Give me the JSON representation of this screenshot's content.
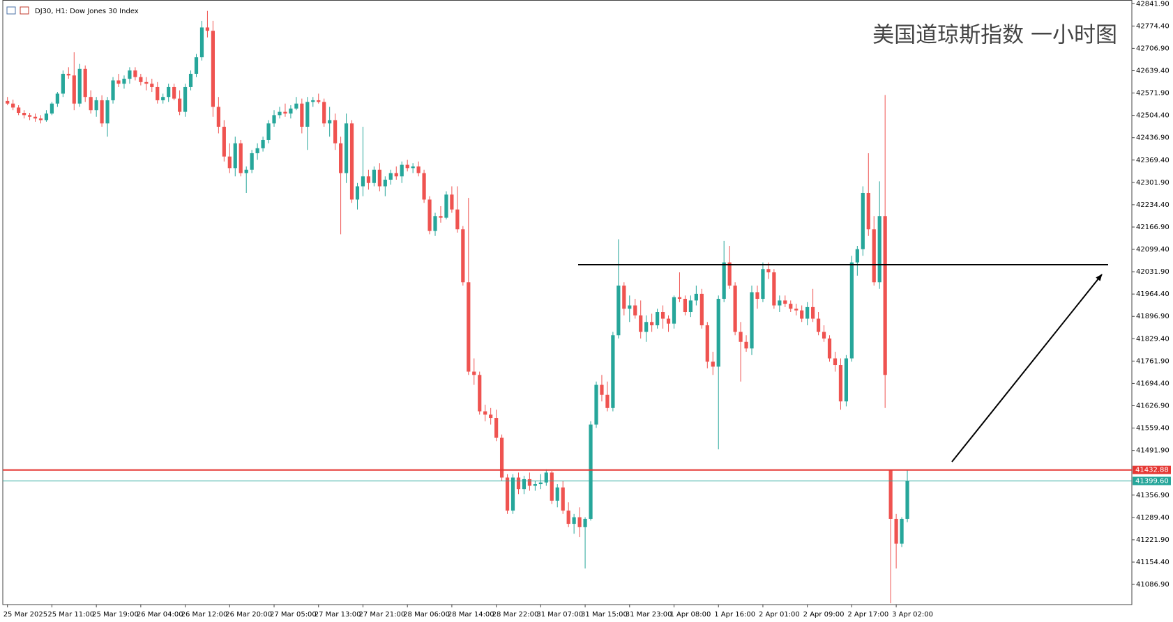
{
  "chart_data": {
    "type": "candlestick",
    "title": "美国道琼斯指数 一小时图",
    "subtitle": "DJ30, H1: Dow Jones 30 Index",
    "up_color": "#26a69a",
    "down_color": "#ef5350",
    "ylim": [
      41026,
      42853
    ],
    "yticks": [
      {
        "value": 42841.9,
        "label": "42841.90"
      },
      {
        "value": 42774.4,
        "label": "42774.40"
      },
      {
        "value": 42706.9,
        "label": "42706.90"
      },
      {
        "value": 42639.4,
        "label": "42639.40"
      },
      {
        "value": 42571.9,
        "label": "42571.90"
      },
      {
        "value": 42504.4,
        "label": "42504.40"
      },
      {
        "value": 42436.9,
        "label": "42436.90"
      },
      {
        "value": 42369.4,
        "label": "42369.40"
      },
      {
        "value": 42301.9,
        "label": "42301.90"
      },
      {
        "value": 42234.4,
        "label": "42234.40"
      },
      {
        "value": 42166.9,
        "label": "42166.90"
      },
      {
        "value": 42099.4,
        "label": "42099.40"
      },
      {
        "value": 42031.9,
        "label": "42031.90"
      },
      {
        "value": 41964.4,
        "label": "41964.40"
      },
      {
        "value": 41896.9,
        "label": "41896.90"
      },
      {
        "value": 41829.4,
        "label": "41829.40"
      },
      {
        "value": 41761.9,
        "label": "41761.90"
      },
      {
        "value": 41694.4,
        "label": "41694.40"
      },
      {
        "value": 41626.9,
        "label": "41626.90"
      },
      {
        "value": 41559.4,
        "label": "41559.40"
      },
      {
        "value": 41491.9,
        "label": "41491.90"
      },
      {
        "value": 41356.9,
        "label": "41356.90"
      },
      {
        "value": 41289.4,
        "label": "41289.40"
      },
      {
        "value": 41221.9,
        "label": "41221.90"
      },
      {
        "value": 41154.4,
        "label": "41154.40"
      },
      {
        "value": 41086.9,
        "label": "41086.90"
      }
    ],
    "price_lines": [
      {
        "value": 41432.88,
        "color": "#e53935"
      },
      {
        "value": 41399.6,
        "label": "41399.60",
        "color": "#26a69a"
      }
    ],
    "categories": [
      "25 Mar 2025",
      null,
      null,
      null,
      null,
      null,
      null,
      null,
      "25 Mar 11:00",
      null,
      null,
      null,
      null,
      null,
      null,
      null,
      "25 Mar 19:00",
      null,
      null,
      null,
      null,
      null,
      null,
      null,
      "26 Mar 04:00",
      null,
      null,
      null,
      null,
      null,
      null,
      null,
      "26 Mar 12:00",
      null,
      null,
      null,
      null,
      null,
      null,
      null,
      "26 Mar 20:00",
      null,
      null,
      null,
      null,
      null,
      null,
      null,
      "27 Mar 05:00",
      null,
      null,
      null,
      null,
      null,
      null,
      null,
      "27 Mar 13:00",
      null,
      null,
      null,
      null,
      null,
      null,
      null,
      "27 Mar 21:00",
      null,
      null,
      null,
      null,
      null,
      null,
      null,
      "28 Mar 06:00",
      null,
      null,
      null,
      null,
      null,
      null,
      null,
      "28 Mar 14:00",
      null,
      null,
      null,
      null,
      null,
      null,
      null,
      "28 Mar 22:00",
      null,
      null,
      null,
      null,
      null,
      null,
      null,
      "31 Mar 07:00",
      null,
      null,
      null,
      null,
      null,
      null,
      null,
      "31 Mar 15:00",
      null,
      null,
      null,
      null,
      null,
      null,
      null,
      "31 Mar 23:00",
      null,
      null,
      null,
      null,
      null,
      null,
      null,
      "1 Apr 08:00",
      null,
      null,
      null,
      null,
      null,
      null,
      null,
      "1 Apr 16:00",
      null,
      null,
      null,
      null,
      null,
      null,
      null,
      "2 Apr 01:00",
      null,
      null,
      null,
      null,
      null,
      null,
      null,
      "2 Apr 09:00",
      null,
      null,
      null,
      null,
      null,
      null,
      null,
      "2 Apr 17:00",
      null,
      null,
      null,
      null,
      null,
      null,
      null,
      "3 Apr 02:00",
      null,
      null
    ],
    "ohlc": [
      [
        42548,
        42560,
        42535,
        42540
      ],
      [
        42540,
        42552,
        42520,
        42528
      ],
      [
        42528,
        42535,
        42505,
        42512
      ],
      [
        42512,
        42520,
        42495,
        42505
      ],
      [
        42505,
        42512,
        42490,
        42500
      ],
      [
        42500,
        42510,
        42485,
        42495
      ],
      [
        42495,
        42505,
        42480,
        42490
      ],
      [
        42490,
        42520,
        42485,
        42510
      ],
      [
        42510,
        42545,
        42505,
        42540
      ],
      [
        42540,
        42575,
        42530,
        42570
      ],
      [
        42570,
        42640,
        42560,
        42630
      ],
      [
        42630,
        42650,
        42615,
        42625
      ],
      [
        42625,
        42695,
        42520,
        42540
      ],
      [
        42540,
        42660,
        42530,
        42645
      ],
      [
        42645,
        42655,
        42545,
        42560
      ],
      [
        42560,
        42580,
        42510,
        42520
      ],
      [
        42520,
        42560,
        42500,
        42550
      ],
      [
        42550,
        42565,
        42470,
        42480
      ],
      [
        42480,
        42560,
        42440,
        42550
      ],
      [
        42550,
        42620,
        42540,
        42610
      ],
      [
        42610,
        42630,
        42590,
        42600
      ],
      [
        42600,
        42625,
        42585,
        42615
      ],
      [
        42615,
        42650,
        42600,
        42640
      ],
      [
        42640,
        42650,
        42610,
        42620
      ],
      [
        42620,
        42630,
        42595,
        42605
      ],
      [
        42605,
        42620,
        42580,
        42600
      ],
      [
        42600,
        42615,
        42575,
        42590
      ],
      [
        42590,
        42605,
        42540,
        42550
      ],
      [
        42550,
        42570,
        42540,
        42560
      ],
      [
        42560,
        42600,
        42545,
        42590
      ],
      [
        42590,
        42600,
        42550,
        42555
      ],
      [
        42555,
        42580,
        42505,
        42515
      ],
      [
        42515,
        42600,
        42500,
        42590
      ],
      [
        42590,
        42640,
        42580,
        42630
      ],
      [
        42630,
        42690,
        42620,
        42680
      ],
      [
        42680,
        42790,
        42670,
        42770
      ],
      [
        42770,
        42820,
        42740,
        42760
      ],
      [
        42760,
        42790,
        42500,
        42530
      ],
      [
        42530,
        42560,
        42450,
        42470
      ],
      [
        42470,
        42490,
        42365,
        42380
      ],
      [
        42380,
        42420,
        42330,
        42345
      ],
      [
        42345,
        42440,
        42320,
        42420
      ],
      [
        42420,
        42430,
        42320,
        42330
      ],
      [
        42330,
        42350,
        42270,
        42340
      ],
      [
        42340,
        42400,
        42330,
        42390
      ],
      [
        42390,
        42420,
        42370,
        42405
      ],
      [
        42405,
        42440,
        42395,
        42430
      ],
      [
        42430,
        42490,
        42420,
        42480
      ],
      [
        42480,
        42520,
        42470,
        42505
      ],
      [
        42505,
        42530,
        42495,
        42515
      ],
      [
        42515,
        42540,
        42500,
        42510
      ],
      [
        42510,
        42535,
        42495,
        42525
      ],
      [
        42525,
        42560,
        42520,
        42540
      ],
      [
        42540,
        42555,
        42450,
        42470
      ],
      [
        42470,
        42560,
        42400,
        42545
      ],
      [
        42545,
        42560,
        42530,
        42550
      ],
      [
        42550,
        42570,
        42540,
        42545
      ],
      [
        42545,
        42555,
        42470,
        42480
      ],
      [
        42480,
        42530,
        42440,
        42490
      ],
      [
        42490,
        42510,
        42400,
        42420
      ],
      [
        42420,
        42440,
        42145,
        42330
      ],
      [
        42330,
        42510,
        42300,
        42480
      ],
      [
        42480,
        42490,
        42240,
        42250
      ],
      [
        42250,
        42300,
        42220,
        42290
      ],
      [
        42290,
        42470,
        42260,
        42320
      ],
      [
        42320,
        42340,
        42280,
        42300
      ],
      [
        42300,
        42350,
        42290,
        42340
      ],
      [
        42340,
        42360,
        42275,
        42290
      ],
      [
        42290,
        42320,
        42260,
        42310
      ],
      [
        42310,
        42340,
        42295,
        42330
      ],
      [
        42330,
        42350,
        42310,
        42320
      ],
      [
        42320,
        42365,
        42300,
        42355
      ],
      [
        42355,
        42370,
        42335,
        42345
      ],
      [
        42345,
        42360,
        42330,
        42350
      ],
      [
        42350,
        42365,
        42320,
        42330
      ],
      [
        42330,
        42340,
        42240,
        42250
      ],
      [
        42250,
        42260,
        42145,
        42155
      ],
      [
        42155,
        42210,
        42140,
        42200
      ],
      [
        42200,
        42230,
        42180,
        42195
      ],
      [
        42195,
        42275,
        42190,
        42265
      ],
      [
        42265,
        42290,
        42210,
        42220
      ],
      [
        42220,
        42290,
        42150,
        42160
      ],
      [
        42160,
        42170,
        41990,
        42000
      ],
      [
        42000,
        42255,
        41720,
        41730
      ],
      [
        41730,
        41770,
        41690,
        41720
      ],
      [
        41720,
        41730,
        41600,
        41610
      ],
      [
        41610,
        41630,
        41580,
        41600
      ],
      [
        41600,
        41620,
        41570,
        41590
      ],
      [
        41590,
        41615,
        41520,
        41530
      ],
      [
        41530,
        41540,
        41400,
        41410
      ],
      [
        41410,
        41420,
        41300,
        41310
      ],
      [
        41310,
        41420,
        41300,
        41410
      ],
      [
        41410,
        41425,
        41360,
        41375
      ],
      [
        41375,
        41415,
        41360,
        41405
      ],
      [
        41405,
        41425,
        41370,
        41385
      ],
      [
        41385,
        41400,
        41370,
        41390
      ],
      [
        41390,
        41420,
        41375,
        41395
      ],
      [
        41395,
        41435,
        41385,
        41425
      ],
      [
        41425,
        41430,
        41330,
        41340
      ],
      [
        41340,
        41390,
        41320,
        41380
      ],
      [
        41380,
        41400,
        41300,
        41310
      ],
      [
        41310,
        41335,
        41260,
        41270
      ],
      [
        41270,
        41300,
        41240,
        41290
      ],
      [
        41290,
        41320,
        41230,
        41260
      ],
      [
        41260,
        41290,
        41135,
        41285
      ],
      [
        41285,
        41580,
        41280,
        41570
      ],
      [
        41570,
        41700,
        41560,
        41690
      ],
      [
        41690,
        41720,
        41640,
        41660
      ],
      [
        41660,
        41700,
        41610,
        41620
      ],
      [
        41620,
        41850,
        41610,
        41840
      ],
      [
        41840,
        42130,
        41830,
        41990
      ],
      [
        41990,
        42000,
        41900,
        41920
      ],
      [
        41920,
        41960,
        41880,
        41930
      ],
      [
        41930,
        41950,
        41890,
        41900
      ],
      [
        41900,
        41945,
        41830,
        41850
      ],
      [
        41850,
        41900,
        41820,
        41880
      ],
      [
        41880,
        41905,
        41850,
        41870
      ],
      [
        41870,
        41920,
        41860,
        41910
      ],
      [
        41910,
        41930,
        41860,
        41890
      ],
      [
        41890,
        41900,
        41850,
        41875
      ],
      [
        41875,
        41960,
        41860,
        41955
      ],
      [
        41955,
        42030,
        41940,
        41950
      ],
      [
        41950,
        41960,
        41900,
        41910
      ],
      [
        41910,
        41960,
        41895,
        41945
      ],
      [
        41945,
        41990,
        41930,
        41965
      ],
      [
        41965,
        41980,
        41860,
        41870
      ],
      [
        41870,
        41880,
        41740,
        41760
      ],
      [
        41760,
        41790,
        41720,
        41745
      ],
      [
        41745,
        41960,
        41495,
        41950
      ],
      [
        41950,
        42125,
        41940,
        42060
      ],
      [
        42060,
        42110,
        41980,
        41990
      ],
      [
        41990,
        42000,
        41840,
        41850
      ],
      [
        41850,
        41880,
        41700,
        41820
      ],
      [
        41820,
        41840,
        41790,
        41800
      ],
      [
        41800,
        41990,
        41780,
        41970
      ],
      [
        41970,
        41990,
        41920,
        41950
      ],
      [
        41950,
        42060,
        41940,
        42040
      ],
      [
        42040,
        42060,
        42010,
        42030
      ],
      [
        42030,
        42040,
        41920,
        41930
      ],
      [
        41930,
        41960,
        41910,
        41945
      ],
      [
        41945,
        41960,
        41925,
        41935
      ],
      [
        41935,
        41945,
        41910,
        41920
      ],
      [
        41920,
        41935,
        41900,
        41915
      ],
      [
        41915,
        41930,
        41880,
        41890
      ],
      [
        41890,
        41940,
        41870,
        41925
      ],
      [
        41925,
        41980,
        41880,
        41890
      ],
      [
        41890,
        41910,
        41840,
        41850
      ],
      [
        41850,
        41870,
        41820,
        41830
      ],
      [
        41830,
        41840,
        41760,
        41770
      ],
      [
        41770,
        41790,
        41730,
        41750
      ],
      [
        41750,
        41770,
        41615,
        41640
      ],
      [
        41640,
        41780,
        41625,
        41770
      ],
      [
        41770,
        42080,
        41760,
        42060
      ],
      [
        42060,
        42110,
        42020,
        42100
      ],
      [
        42100,
        42290,
        42080,
        42270
      ],
      [
        42270,
        42390,
        42140,
        42160
      ],
      [
        42160,
        42200,
        41990,
        42000
      ],
      [
        42000,
        42305,
        41980,
        42200
      ],
      [
        42200,
        42566,
        41620,
        41720
      ],
      [
        41433,
        41433,
        41030,
        41285
      ],
      [
        41285,
        41300,
        41135,
        41210
      ],
      [
        41210,
        41290,
        41200,
        41285
      ],
      [
        41285,
        41433,
        41275,
        41399.6
      ]
    ]
  }
}
